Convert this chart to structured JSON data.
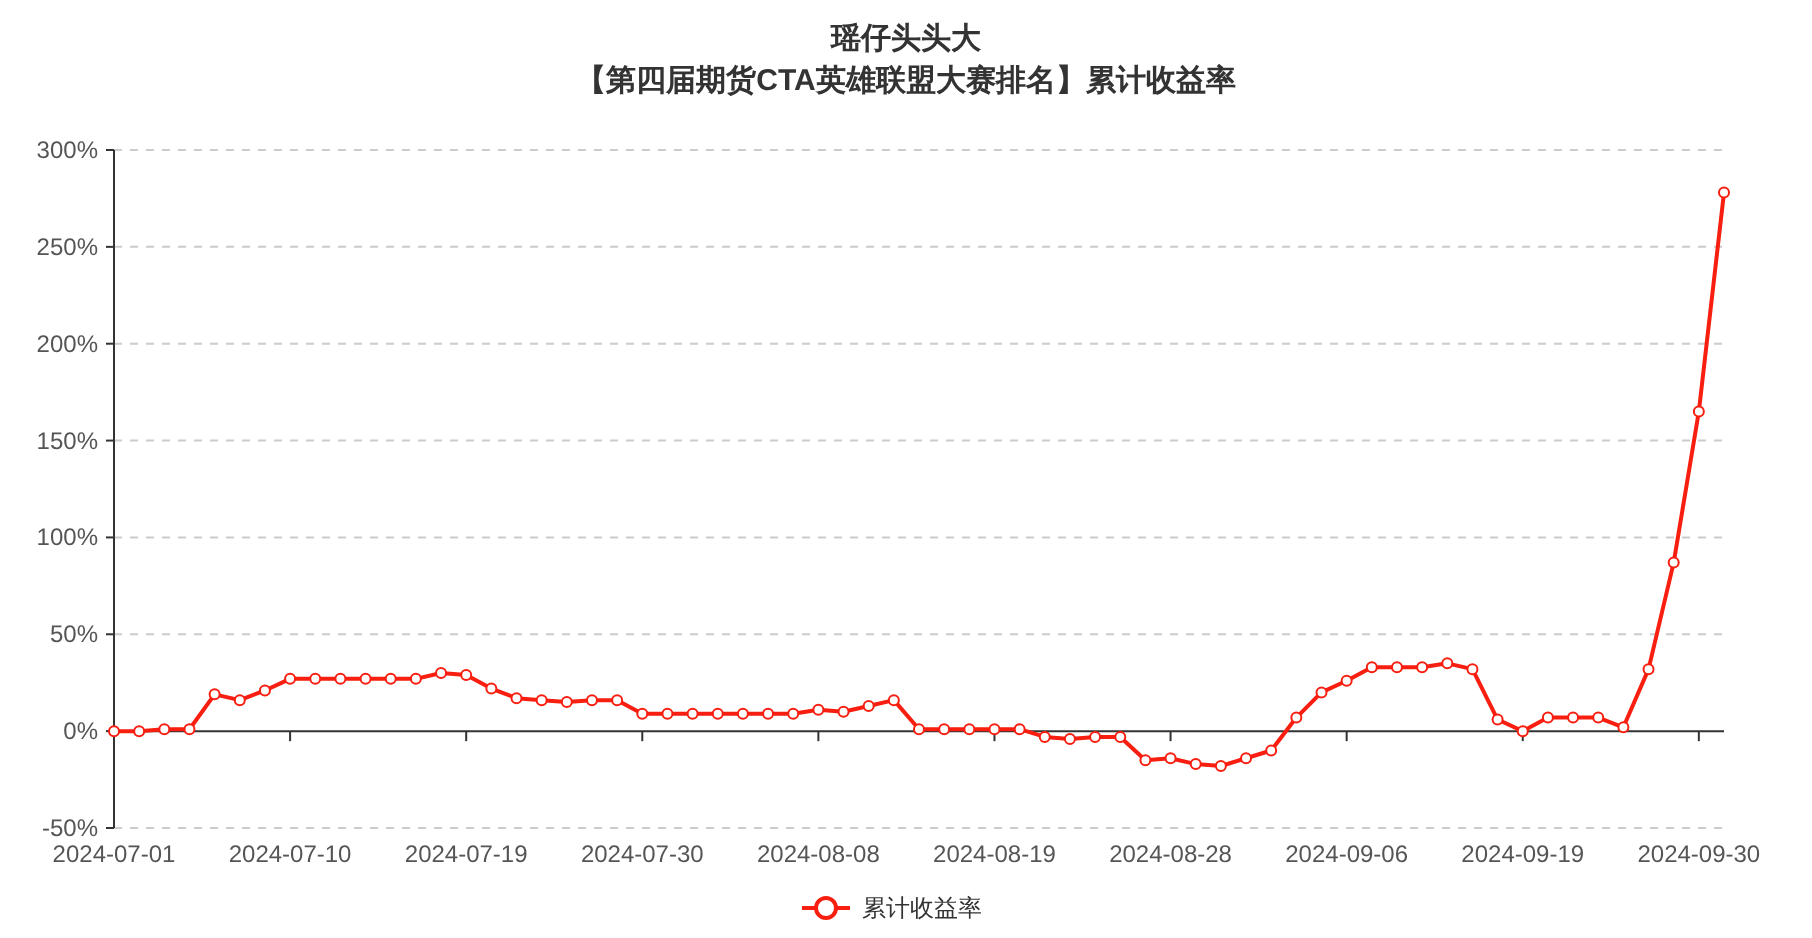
{
  "chart_data": {
    "type": "line",
    "title": "瑶仔头头大",
    "subtitle": "【第四届期货CTA英雄联盟大赛排名】累计收益率",
    "categories": [
      "2024-07-01",
      null,
      null,
      null,
      null,
      null,
      null,
      "2024-07-10",
      null,
      null,
      null,
      null,
      null,
      null,
      "2024-07-19",
      null,
      null,
      null,
      null,
      null,
      null,
      "2024-07-30",
      null,
      null,
      null,
      null,
      null,
      null,
      "2024-08-08",
      null,
      null,
      null,
      null,
      null,
      null,
      "2024-08-19",
      null,
      null,
      null,
      null,
      null,
      null,
      "2024-08-28",
      null,
      null,
      null,
      null,
      null,
      null,
      "2024-09-06",
      null,
      null,
      null,
      null,
      null,
      null,
      "2024-09-19",
      null,
      null,
      null,
      null,
      null,
      null,
      "2024-09-30",
      null
    ],
    "series": [
      {
        "name": "累计收益率",
        "color": "#f81e10",
        "values": [
          0,
          0,
          1,
          1,
          19,
          16,
          21,
          27,
          27,
          27,
          27,
          27,
          27,
          30,
          29,
          22,
          17,
          16,
          15,
          16,
          16,
          9,
          9,
          9,
          9,
          9,
          9,
          9,
          11,
          10,
          13,
          16,
          1,
          1,
          1,
          1,
          1,
          -3,
          -4,
          -3,
          -3,
          -15,
          -14,
          -17,
          -18,
          -14,
          -10,
          7,
          20,
          26,
          33,
          33,
          33,
          35,
          32,
          6,
          0,
          7,
          7,
          7,
          2,
          32,
          87,
          165,
          278
        ]
      }
    ],
    "ylim": [
      -50,
      300
    ],
    "yticks": [
      {
        "value": -50,
        "label": "-50%"
      },
      {
        "value": 0,
        "label": "0%"
      },
      {
        "value": 50,
        "label": "50%"
      },
      {
        "value": 100,
        "label": "100%"
      },
      {
        "value": 150,
        "label": "150%"
      },
      {
        "value": 200,
        "label": "200%"
      },
      {
        "value": 250,
        "label": "250%"
      },
      {
        "value": 300,
        "label": "300%"
      }
    ],
    "grid": "y",
    "legend": "bottom",
    "marker": "circle",
    "line_style": "solid"
  }
}
